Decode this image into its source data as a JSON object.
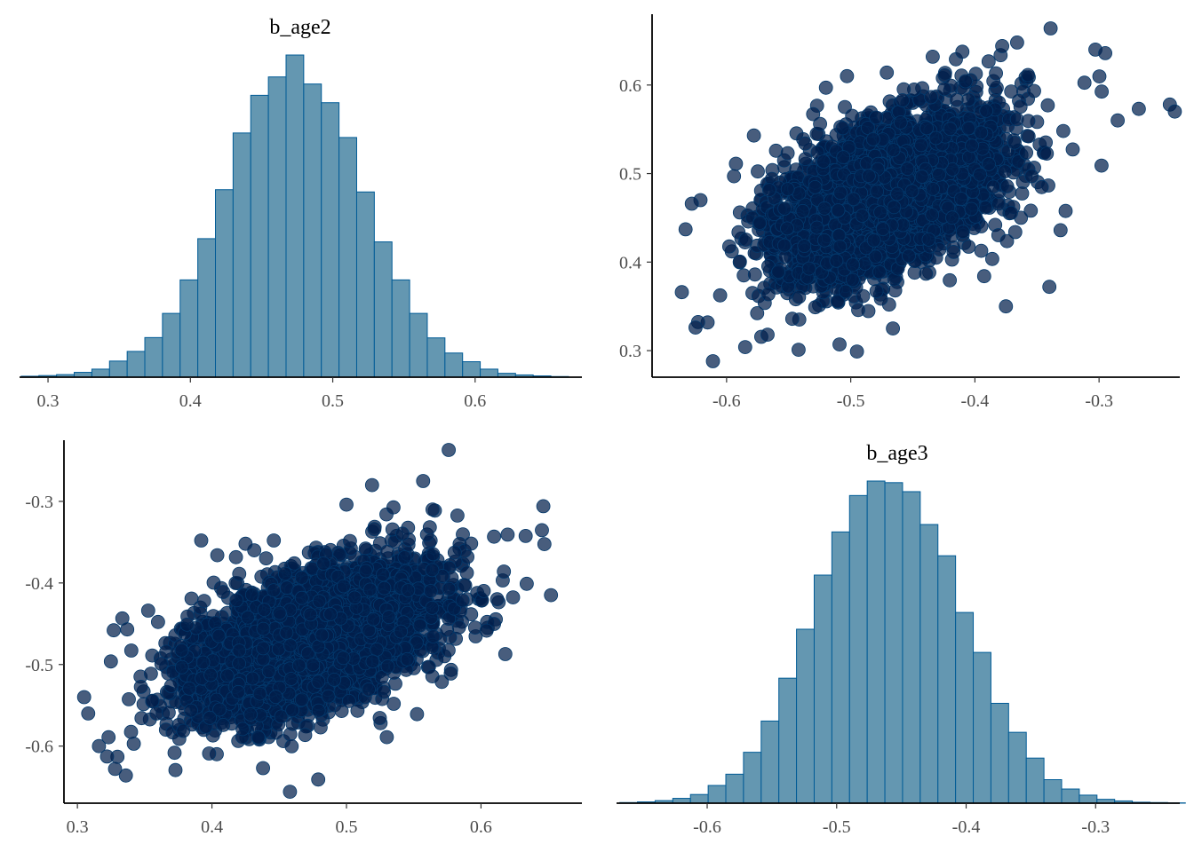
{
  "colors": {
    "hist_fill": "#6497b1",
    "hist_stroke": "#005b96",
    "point_fill": "#011f4b",
    "point_stroke": "#03396c",
    "axis": "#000000",
    "tick_text": "#4d4d4d"
  },
  "chart_data": [
    {
      "id": "hist_b_age2",
      "type": "bar",
      "title": "b_age2",
      "xlabel": "",
      "ylabel": "",
      "xlim": [
        0.28,
        0.675
      ],
      "ylim": [
        0,
        1
      ],
      "grid": false,
      "x_ticks": [
        0.3,
        0.4,
        0.5,
        0.6
      ],
      "x_tick_labels": [
        "0.3",
        "0.4",
        "0.5",
        "0.6"
      ],
      "y_axis_visible": false,
      "bin_start": 0.2812,
      "bin_width": 0.0124,
      "values": [
        0.003,
        0.005,
        0.008,
        0.015,
        0.025,
        0.05,
        0.08,
        0.123,
        0.198,
        0.302,
        0.43,
        0.582,
        0.758,
        0.875,
        0.932,
        1.0,
        0.91,
        0.852,
        0.744,
        0.575,
        0.42,
        0.302,
        0.198,
        0.122,
        0.075,
        0.048,
        0.025,
        0.012,
        0.007,
        0.004,
        0.002
      ]
    },
    {
      "id": "scatter_age3_vs_age2",
      "type": "scatter",
      "xlabel": "",
      "ylabel": "",
      "xlim": [
        -0.66,
        -0.235
      ],
      "ylim": [
        0.27,
        0.68
      ],
      "grid": false,
      "x_ticks": [
        -0.6,
        -0.5,
        -0.4,
        -0.3
      ],
      "x_tick_labels": [
        "-0.6",
        "-0.5",
        "-0.4",
        "-0.3"
      ],
      "y_ticks": [
        0.3,
        0.4,
        0.5,
        0.6
      ],
      "y_tick_labels": [
        "0.3",
        "0.4",
        "0.5",
        "0.6"
      ],
      "mean": [
        -0.47,
        0.475
      ],
      "sd": [
        0.045,
        0.045
      ],
      "correlation": 0.5,
      "n_points": 4000,
      "outliers": [
        [
          -0.636,
          0.366
        ],
        [
          -0.625,
          0.326
        ],
        [
          -0.611,
          0.288
        ],
        [
          -0.585,
          0.304
        ],
        [
          -0.567,
          0.318
        ],
        [
          -0.542,
          0.301
        ],
        [
          -0.509,
          0.307
        ],
        [
          -0.495,
          0.299
        ],
        [
          -0.466,
          0.325
        ],
        [
          -0.375,
          0.35
        ],
        [
          -0.34,
          0.372
        ],
        [
          -0.331,
          0.436
        ],
        [
          -0.298,
          0.509
        ],
        [
          -0.285,
          0.56
        ],
        [
          -0.268,
          0.573
        ],
        [
          -0.243,
          0.578
        ],
        [
          -0.239,
          0.57
        ],
        [
          -0.303,
          0.64
        ],
        [
          -0.295,
          0.636
        ],
        [
          -0.339,
          0.664
        ],
        [
          -0.366,
          0.648
        ],
        [
          -0.378,
          0.644
        ],
        [
          -0.434,
          0.632
        ],
        [
          -0.471,
          0.614
        ],
        [
          -0.503,
          0.61
        ],
        [
          -0.52,
          0.597
        ],
        [
          -0.621,
          0.47
        ],
        [
          -0.633,
          0.437
        ],
        [
          -0.628,
          0.466
        ],
        [
          -0.594,
          0.497
        ],
        [
          -0.578,
          0.543
        ]
      ]
    },
    {
      "id": "scatter_age2_vs_age3",
      "type": "scatter",
      "xlabel": "",
      "ylabel": "",
      "xlim": [
        0.29,
        0.675
      ],
      "ylim": [
        -0.67,
        -0.225
      ],
      "grid": false,
      "x_ticks": [
        0.3,
        0.4,
        0.5,
        0.6
      ],
      "x_tick_labels": [
        "0.3",
        "0.4",
        "0.5",
        "0.6"
      ],
      "y_ticks": [
        -0.3,
        -0.4,
        -0.5,
        -0.6
      ],
      "y_tick_labels": [
        "-0.3",
        "-0.4",
        "-0.5",
        "-0.6"
      ],
      "mean": [
        0.475,
        -0.47
      ],
      "sd": [
        0.045,
        0.045
      ],
      "correlation": 0.5,
      "n_points": 4000,
      "outliers": [
        [
          0.305,
          -0.54
        ],
        [
          0.308,
          -0.56
        ],
        [
          0.316,
          -0.6
        ],
        [
          0.328,
          -0.628
        ],
        [
          0.336,
          -0.636
        ],
        [
          0.327,
          -0.458
        ],
        [
          0.337,
          -0.457
        ],
        [
          0.458,
          -0.656
        ],
        [
          0.479,
          -0.641
        ],
        [
          0.438,
          -0.627
        ],
        [
          0.53,
          -0.589
        ],
        [
          0.576,
          -0.237
        ],
        [
          0.557,
          -0.275
        ],
        [
          0.519,
          -0.28
        ],
        [
          0.564,
          -0.31
        ],
        [
          0.617,
          -0.386
        ],
        [
          0.652,
          -0.415
        ],
        [
          0.634,
          -0.401
        ],
        [
          0.612,
          -0.42
        ],
        [
          0.404,
          -0.366
        ],
        [
          0.392,
          -0.348
        ],
        [
          0.425,
          -0.352
        ],
        [
          0.446,
          -0.348
        ],
        [
          0.5,
          -0.304
        ]
      ]
    },
    {
      "id": "hist_b_age3",
      "type": "bar",
      "title": "b_age3",
      "xlabel": "",
      "ylabel": "",
      "xlim": [
        -0.67,
        -0.235
      ],
      "ylim": [
        0,
        1
      ],
      "grid": false,
      "x_ticks": [
        -0.6,
        -0.5,
        -0.4,
        -0.3
      ],
      "x_tick_labels": [
        "-0.6",
        "-0.5",
        "-0.4",
        "-0.3"
      ],
      "y_axis_visible": false,
      "bin_start": -0.6675,
      "bin_width": 0.01365,
      "values": [
        0.002,
        0.004,
        0.008,
        0.015,
        0.027,
        0.055,
        0.09,
        0.158,
        0.255,
        0.388,
        0.54,
        0.708,
        0.842,
        0.955,
        1.0,
        0.995,
        0.967,
        0.865,
        0.768,
        0.592,
        0.468,
        0.31,
        0.22,
        0.14,
        0.073,
        0.044,
        0.025,
        0.012,
        0.007,
        0.003,
        0.002,
        0.001
      ]
    }
  ]
}
